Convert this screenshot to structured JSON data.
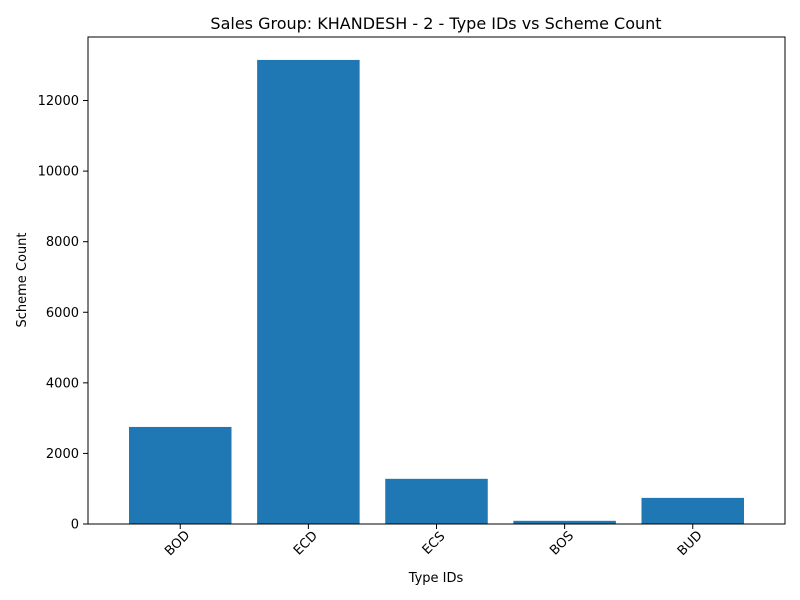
{
  "chart_data": {
    "type": "bar",
    "title": "Sales Group: KHANDESH - 2 - Type IDs vs Scheme Count",
    "xlabel": "Type IDs",
    "ylabel": "Scheme Count",
    "categories": [
      "BOD",
      "ECD",
      "ECS",
      "BOS",
      "BUD"
    ],
    "values": [
      2750,
      13150,
      1280,
      90,
      740
    ],
    "ylim": [
      0,
      13800
    ],
    "yticks": [
      0,
      2000,
      4000,
      6000,
      8000,
      10000,
      12000
    ],
    "bar_color": "#1f77b4",
    "grid": false,
    "legend": "none"
  }
}
